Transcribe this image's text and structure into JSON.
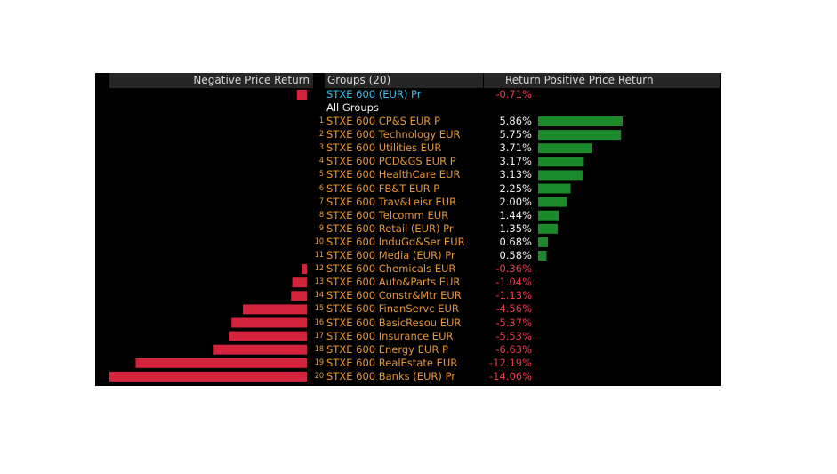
{
  "header": {
    "negative_label": "Negative Price Return",
    "groups_label": "Groups (20)",
    "return_label": "Return",
    "positive_label": "Positive Price Return"
  },
  "index_row": {
    "name": "STXE 600 (EUR) Pr",
    "value_text": "-0.71%",
    "value": -0.71
  },
  "all_groups_label": "All Groups",
  "colors": {
    "background": "#000000",
    "header_bg": "#262626",
    "positive_bar": "#1a8a2a",
    "negative_bar": "#d3233d",
    "name_text": "#e8962e",
    "index_text": "#33c4f0",
    "negative_text": "#e8384f"
  },
  "chart_data": {
    "type": "bar",
    "orientation": "horizontal-diverging",
    "title": "",
    "xlabel": "",
    "ylabel": "",
    "series": [
      {
        "name": "Return",
        "values": [
          5.86,
          5.75,
          3.71,
          3.17,
          3.13,
          2.25,
          2.0,
          1.44,
          1.35,
          0.68,
          0.58,
          -0.36,
          -1.04,
          -1.13,
          -4.56,
          -5.37,
          -5.53,
          -6.63,
          -12.19,
          -14.06
        ]
      }
    ],
    "rows": [
      {
        "rank": "1",
        "name": "STXE 600 CP&S EUR P",
        "value_text": "5.86%",
        "value": 5.86
      },
      {
        "rank": "2",
        "name": "STXE 600 Technology EUR",
        "value_text": "5.75%",
        "value": 5.75
      },
      {
        "rank": "3",
        "name": "STXE 600 Utilities EUR",
        "value_text": "3.71%",
        "value": 3.71
      },
      {
        "rank": "4",
        "name": "STXE 600 PCD&GS EUR P",
        "value_text": "3.17%",
        "value": 3.17
      },
      {
        "rank": "5",
        "name": "STXE 600 HealthCare EUR",
        "value_text": "3.13%",
        "value": 3.13
      },
      {
        "rank": "6",
        "name": "STXE 600 FB&T EUR P",
        "value_text": "2.25%",
        "value": 2.25
      },
      {
        "rank": "7",
        "name": "STXE 600 Trav&Leisr EUR",
        "value_text": "2.00%",
        "value": 2.0
      },
      {
        "rank": "8",
        "name": "STXE 600 Telcomm EUR",
        "value_text": "1.44%",
        "value": 1.44
      },
      {
        "rank": "9",
        "name": "STXE 600 Retail (EUR) Pr",
        "value_text": "1.35%",
        "value": 1.35
      },
      {
        "rank": "10",
        "name": "STXE 600 InduGd&Ser EUR",
        "value_text": "0.68%",
        "value": 0.68
      },
      {
        "rank": "11",
        "name": "STXE 600 Media (EUR) Pr",
        "value_text": "0.58%",
        "value": 0.58
      },
      {
        "rank": "12",
        "name": "STXE 600 Chemicals EUR",
        "value_text": "-0.36%",
        "value": -0.36
      },
      {
        "rank": "13",
        "name": "STXE 600 Auto&Parts EUR",
        "value_text": "-1.04%",
        "value": -1.04
      },
      {
        "rank": "14",
        "name": "STXE 600 Constr&Mtr EUR",
        "value_text": "-1.13%",
        "value": -1.13
      },
      {
        "rank": "15",
        "name": "STXE 600 FinanServc EUR",
        "value_text": "-4.56%",
        "value": -4.56
      },
      {
        "rank": "16",
        "name": "STXE 600 BasicResou EUR",
        "value_text": "-5.37%",
        "value": -5.37
      },
      {
        "rank": "17",
        "name": "STXE 600 Insurance EUR",
        "value_text": "-5.53%",
        "value": -5.53
      },
      {
        "rank": "18",
        "name": "STXE 600 Energy EUR P",
        "value_text": "-6.63%",
        "value": -6.63
      },
      {
        "rank": "19",
        "name": "STXE 600 RealEstate EUR",
        "value_text": "-12.19%",
        "value": -12.19
      },
      {
        "rank": "20",
        "name": "STXE 600 Banks (EUR) Pr",
        "value_text": "-14.06%",
        "value": -14.06
      }
    ]
  }
}
